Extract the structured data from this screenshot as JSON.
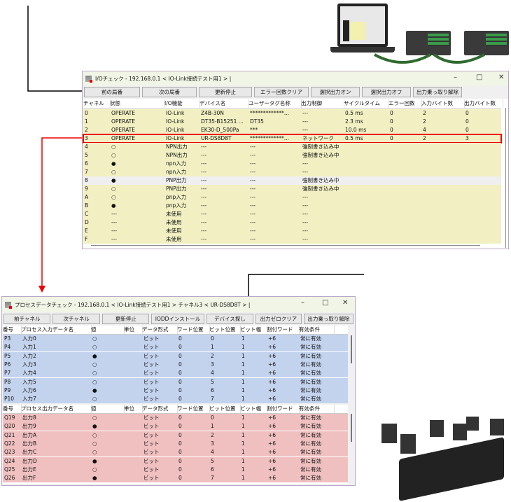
{
  "io_window": {
    "title": "I/Oチェック  -  192.168.0.1 < IO-Link接続テスト用1 >  |",
    "buttons": [
      "前の局番",
      "次の局番",
      "更新停止",
      "エラー回数クリア",
      "選択出力オン",
      "選択出力オフ",
      "出力乗っ取り解除"
    ],
    "columns": [
      "チャネル",
      "状態",
      "I/O機能",
      "デバイス名",
      "ユーザータグ名称",
      "出力制御",
      "サイクルタイム",
      "エラー回数",
      "入力バイト数",
      "出力バイト数"
    ],
    "rows": [
      [
        "0",
        "OPERATE",
        "IO-Link",
        "Z4B-30N",
        "*************...",
        "---",
        "0.5 ms",
        "0",
        "2",
        "0"
      ],
      [
        "1",
        "OPERATE",
        "IO-Link",
        "DT35-B15251 ...",
        "DT35",
        "---",
        "2.3 ms",
        "0",
        "2",
        "0"
      ],
      [
        "2",
        "OPERATE",
        "IO-Link",
        "EK30-D_500Pa",
        "***",
        "---",
        "10.0 ms",
        "0",
        "4",
        "0"
      ],
      [
        "3",
        "OPERATE",
        "IO-Link",
        "UR-DS8D8T",
        "*************...",
        "ネットワーク",
        "0.5 ms",
        "0",
        "2",
        "3"
      ],
      [
        "4",
        "○",
        "NPN出力",
        "---",
        "---",
        "強制書き込み中",
        "",
        "",
        "",
        ""
      ],
      [
        "5",
        "○",
        "NPN出力",
        "---",
        "---",
        "強制書き込み中",
        "",
        "",
        "",
        ""
      ],
      [
        "6",
        "●",
        "npn入力",
        "---",
        "---",
        "---",
        "",
        "",
        "",
        ""
      ],
      [
        "7",
        "○",
        "npn入力",
        "---",
        "---",
        "---",
        "",
        "",
        "",
        ""
      ],
      [
        "8",
        "●",
        "PNP出力",
        "---",
        "---",
        "強制書き込み中",
        "",
        "",
        "",
        ""
      ],
      [
        "9",
        "○",
        "PNP出力",
        "---",
        "---",
        "強制書き込み中",
        "",
        "",
        "",
        ""
      ],
      [
        "A",
        "○",
        "pnp入力",
        "---",
        "---",
        "---",
        "",
        "",
        "",
        ""
      ],
      [
        "B",
        "●",
        "pnp入力",
        "---",
        "---",
        "---",
        "",
        "",
        "",
        ""
      ],
      [
        "C",
        "---",
        "未使用",
        "---",
        "---",
        "---",
        "",
        "",
        "",
        ""
      ],
      [
        "D",
        "---",
        "未使用",
        "---",
        "---",
        "---",
        "",
        "",
        "",
        ""
      ],
      [
        "E",
        "---",
        "未使用",
        "---",
        "---",
        "---",
        "",
        "",
        "",
        ""
      ],
      [
        "F",
        "---",
        "未使用",
        "---",
        "---",
        "---",
        "",
        "",
        "",
        ""
      ]
    ],
    "highlighted_row": "3",
    "selected_row": "8"
  },
  "pd_window": {
    "title": "プロセスデータチェック  -  192.168.0.1 < IO-Link接続テスト用1 >  チャネル3 < UR-DS8D8T >  |",
    "buttons": [
      "前チャネル",
      "次チャネル",
      "更新停止",
      "IODDインストール",
      "デバイス探し",
      "出力ゼロクリア",
      "出力乗っ取り解除"
    ],
    "input_columns": [
      "番号",
      "プロセス入力データ名",
      "値",
      "単位",
      "データ形式",
      "ワード位置",
      "ビット位置",
      "ビット幅",
      "割付ワード",
      "有効条件"
    ],
    "output_columns": [
      "番号",
      "プロセス出力データ名",
      "値",
      "単位",
      "データ形式",
      "ワード位置",
      "ビット位置",
      "ビット幅",
      "割付ワード",
      "有効条件"
    ],
    "input_rows": [
      [
        "P3",
        "入力0",
        "○",
        "",
        "ビット",
        "0",
        "0",
        "1",
        "+6",
        "常に有効"
      ],
      [
        "P4",
        "入力1",
        "○",
        "",
        "ビット",
        "0",
        "1",
        "1",
        "+6",
        "常に有効"
      ],
      [
        "P5",
        "入力2",
        "●",
        "",
        "ビット",
        "0",
        "2",
        "1",
        "+6",
        "常に有効"
      ],
      [
        "P6",
        "入力3",
        "○",
        "",
        "ビット",
        "0",
        "3",
        "1",
        "+6",
        "常に有効"
      ],
      [
        "P7",
        "入力4",
        "○",
        "",
        "ビット",
        "0",
        "4",
        "1",
        "+6",
        "常に有効"
      ],
      [
        "P8",
        "入力5",
        "○",
        "",
        "ビット",
        "0",
        "5",
        "1",
        "+6",
        "常に有効"
      ],
      [
        "P9",
        "入力6",
        "●",
        "",
        "ビット",
        "0",
        "6",
        "1",
        "+6",
        "常に有効"
      ],
      [
        "P10",
        "入力7",
        "○",
        "",
        "ビット",
        "0",
        "7",
        "1",
        "+6",
        "常に有効"
      ]
    ],
    "output_rows": [
      [
        "Q19",
        "出力8",
        "○",
        "",
        "ビット",
        "0",
        "0",
        "1",
        "+6",
        "常に有効"
      ],
      [
        "Q20",
        "出力9",
        "●",
        "",
        "ビット",
        "0",
        "1",
        "1",
        "+6",
        "常に有効"
      ],
      [
        "Q21",
        "出力A",
        "○",
        "",
        "ビット",
        "0",
        "2",
        "1",
        "+6",
        "常に有効"
      ],
      [
        "Q22",
        "出力B",
        "○",
        "",
        "ビット",
        "0",
        "3",
        "1",
        "+6",
        "常に有効"
      ],
      [
        "Q23",
        "出力C",
        "○",
        "",
        "ビット",
        "0",
        "4",
        "1",
        "+6",
        "常に有効"
      ],
      [
        "Q24",
        "出力D",
        "●",
        "",
        "ビット",
        "0",
        "5",
        "1",
        "+6",
        "常に有効"
      ],
      [
        "Q25",
        "出力E",
        "○",
        "",
        "ビット",
        "0",
        "6",
        "1",
        "+6",
        "常に有効"
      ],
      [
        "Q26",
        "出力F",
        "●",
        "",
        "ビット",
        "0",
        "7",
        "1",
        "+6",
        "常に有効"
      ]
    ]
  },
  "colors": {
    "io_rows": "#f2f0c2",
    "selected": "#efefef",
    "input_rows": "#c3d3ee",
    "output_rows": "#f0c0c0",
    "highlight": "#e00000",
    "cable": "#2f6b2f"
  }
}
